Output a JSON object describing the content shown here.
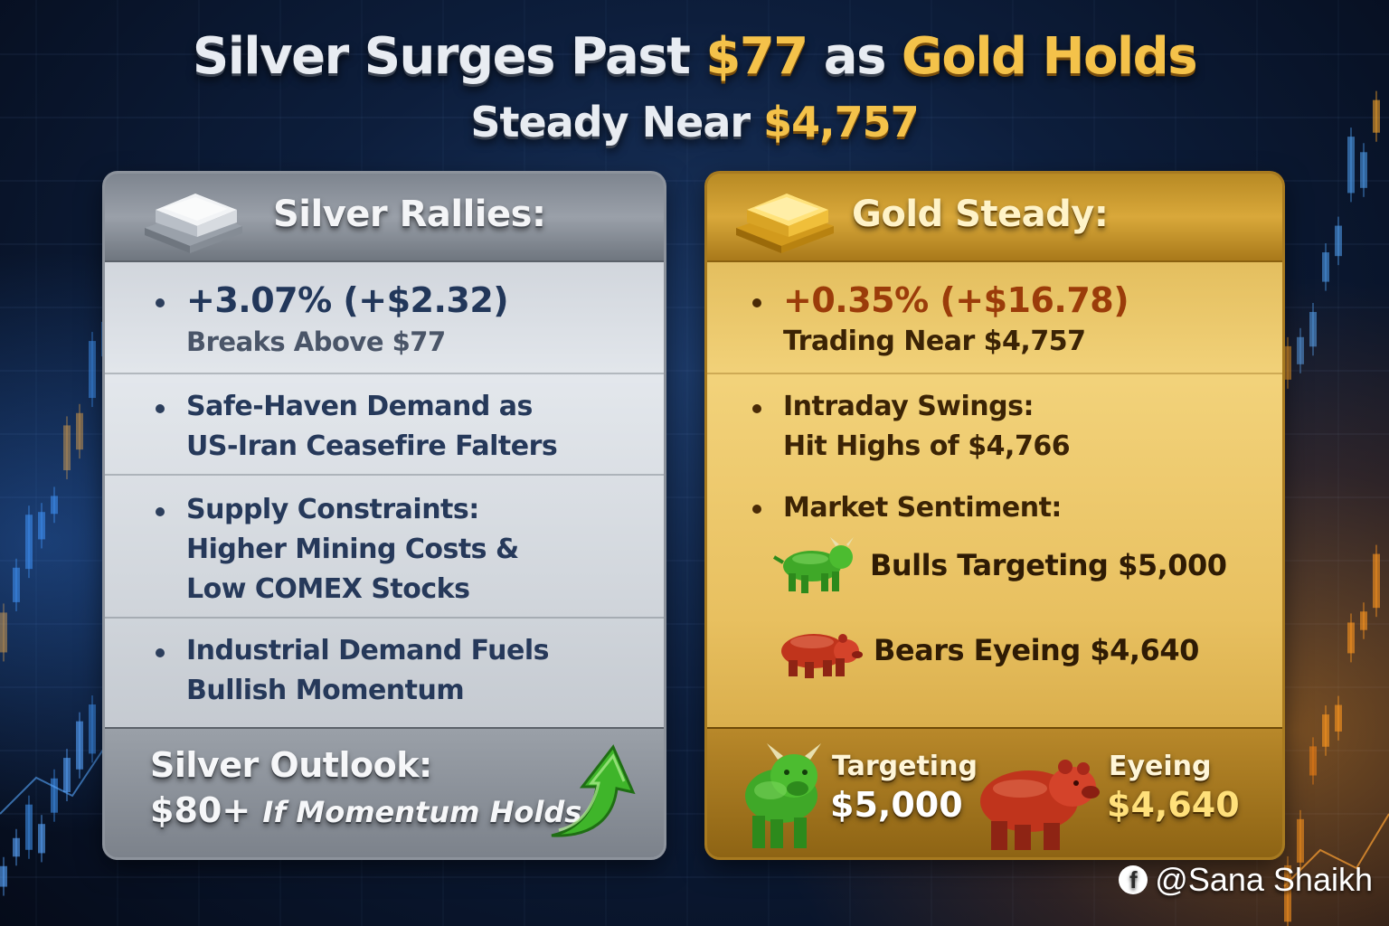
{
  "headline": {
    "line1_a": "Silver Surges Past ",
    "line1_b": "$77",
    "line1_c": " as ",
    "line1_d": "Gold Holds",
    "line2_a": "Steady Near ",
    "line2_b": "$4,757"
  },
  "silver": {
    "title": "Silver Rallies:",
    "bullets": [
      {
        "line1": "+3.07% (+$2.32)",
        "line2": "Breaks Above $77"
      },
      {
        "line1": "Safe-Haven Demand as",
        "line2": "US-Iran Ceasefire Falters"
      },
      {
        "line1": "Supply Constraints:",
        "line2": "Higher Mining Costs &",
        "line3": "Low COMEX Stocks"
      },
      {
        "line1": "Industrial Demand Fuels",
        "line2": "Bullish Momentum"
      }
    ],
    "outlook_title": "Silver Outlook:",
    "outlook_value": "$80+",
    "outlook_condition": "If Momentum Holds"
  },
  "gold": {
    "title": "Gold Steady:",
    "bullets": [
      {
        "line1": "+0.35% (+$16.78)",
        "line2": "Trading Near $4,757"
      },
      {
        "line1": "Intraday Swings:",
        "line2": "Hit Highs of $4,766"
      },
      {
        "line1": "Market Sentiment:"
      }
    ],
    "sentiment": {
      "bulls": "Bulls Targeting $5,000",
      "bears": "Bears Eyeing $4,640"
    },
    "footer": {
      "bull_label": "Targeting",
      "bull_value": "$5,000",
      "bear_label": "Eyeing",
      "bear_value": "$4,640"
    }
  },
  "watermark": {
    "icon": "facebook-icon",
    "text": "@Sana Shaikh"
  },
  "colors": {
    "gold_accent": "#f4c24a",
    "bull_green": "#3fa828",
    "bear_red": "#c0341c",
    "arrow_green": "#3fb52a"
  }
}
